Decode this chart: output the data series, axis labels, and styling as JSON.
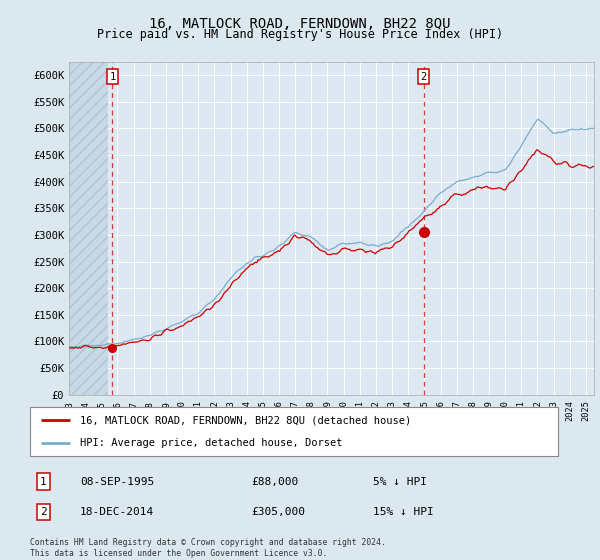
{
  "title": "16, MATLOCK ROAD, FERNDOWN, BH22 8QU",
  "subtitle": "Price paid vs. HM Land Registry's House Price Index (HPI)",
  "title_fontsize": 10,
  "subtitle_fontsize": 8.5,
  "ytick_values": [
    0,
    50000,
    100000,
    150000,
    200000,
    250000,
    300000,
    350000,
    400000,
    450000,
    500000,
    550000,
    600000
  ],
  "ylim": [
    0,
    625000
  ],
  "xlim_start": 1993.0,
  "xlim_end": 2025.5,
  "bg_color": "#dce8f0",
  "plot_bg_color": "#dde8f2",
  "grid_color": "#ffffff",
  "hatch_color": "#c8d8e4",
  "red_line_color": "#cc0000",
  "blue_line_color": "#7aaccc",
  "marker_color": "#cc0000",
  "transaction1": {
    "date_num": 1995.69,
    "price": 88000,
    "label": "1"
  },
  "transaction2": {
    "date_num": 2014.96,
    "price": 305000,
    "label": "2"
  },
  "legend_line1": "16, MATLOCK ROAD, FERNDOWN, BH22 8QU (detached house)",
  "legend_line2": "HPI: Average price, detached house, Dorset",
  "table_row1": [
    "1",
    "08-SEP-1995",
    "£88,000",
    "5% ↓ HPI"
  ],
  "table_row2": [
    "2",
    "18-DEC-2014",
    "£305,000",
    "15% ↓ HPI"
  ],
  "footnote": "Contains HM Land Registry data © Crown copyright and database right 2024.\nThis data is licensed under the Open Government Licence v3.0."
}
